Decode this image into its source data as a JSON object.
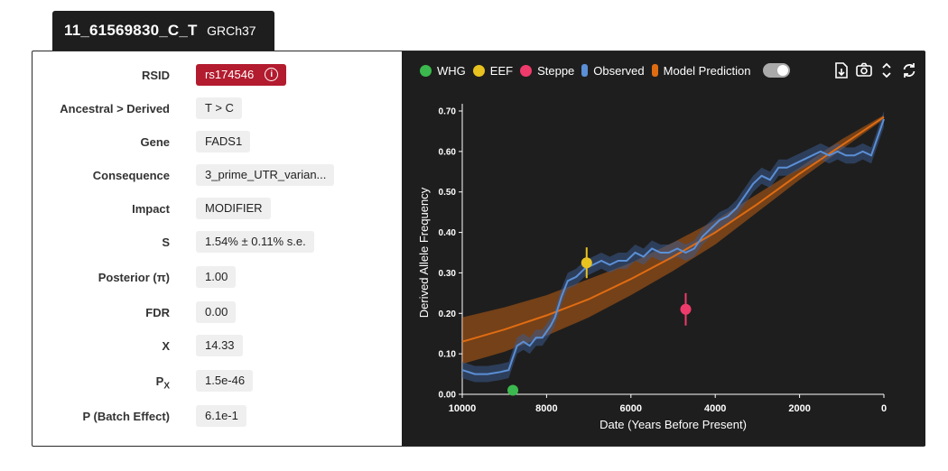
{
  "header": {
    "variant": "11_61569830_C_T",
    "build": "GRCh37"
  },
  "fields": [
    {
      "key": "rsid",
      "label": "RSID",
      "value": "rs174546"
    },
    {
      "key": "alleles",
      "label": "Ancestral > Derived",
      "value": "T > C"
    },
    {
      "key": "gene",
      "label": "Gene",
      "value": "FADS1"
    },
    {
      "key": "consequence",
      "label": "Consequence",
      "value": "3_prime_UTR_varian..."
    },
    {
      "key": "impact",
      "label": "Impact",
      "value": "MODIFIER"
    },
    {
      "key": "s",
      "label": "S",
      "value": "1.54% ± 0.11% s.e."
    },
    {
      "key": "posterior",
      "label": "Posterior (π)",
      "value": "1.00"
    },
    {
      "key": "fdr",
      "label": "FDR",
      "value": "0.00"
    },
    {
      "key": "x",
      "label": "X",
      "value": "14.33"
    },
    {
      "key": "px",
      "label": "P",
      "label_sub": "X",
      "value": "1.5e-46"
    },
    {
      "key": "batch",
      "label": "P (Batch Effect)",
      "value": "6.1e-1"
    }
  ],
  "legend": [
    {
      "name": "WHG",
      "color": "#3cb94e",
      "shape": "dot"
    },
    {
      "name": "EEF",
      "color": "#e8c21f",
      "shape": "dot"
    },
    {
      "name": "Steppe",
      "color": "#ef3b6b",
      "shape": "dot"
    },
    {
      "name": "Observed",
      "color": "#5b8fd6",
      "shape": "bar"
    },
    {
      "name": "Model Prediction",
      "color": "#e06c12",
      "shape": "bar"
    }
  ],
  "toolbar": {
    "icons": [
      "download-file-icon",
      "camera-icon",
      "expand-vertical-icon",
      "reset-icon"
    ]
  },
  "chart_data": {
    "type": "line",
    "xlabel": "Date (Years Before Present)",
    "ylabel": "Derived Allele Frequency",
    "xlim": [
      10000,
      0
    ],
    "ylim": [
      0,
      0.7
    ],
    "x_ticks": [
      10000,
      8000,
      6000,
      4000,
      2000,
      0
    ],
    "y_ticks": [
      0,
      0.1,
      0.2,
      0.3,
      0.4,
      0.5,
      0.6,
      0.7
    ],
    "grid": false,
    "series": [
      {
        "name": "Observed",
        "color": "#5b8fd6",
        "x": [
          10000,
          9700,
          9400,
          9100,
          8900,
          8800,
          8700,
          8550,
          8400,
          8250,
          8100,
          7900,
          7800,
          7650,
          7500,
          7300,
          7100,
          6900,
          6700,
          6500,
          6300,
          6100,
          5900,
          5700,
          5500,
          5300,
          5100,
          4900,
          4700,
          4500,
          4300,
          4100,
          3900,
          3700,
          3500,
          3300,
          3100,
          2900,
          2700,
          2500,
          2300,
          2100,
          1900,
          1700,
          1500,
          1300,
          1100,
          900,
          700,
          500,
          300,
          0
        ],
        "y": [
          0.06,
          0.05,
          0.05,
          0.055,
          0.06,
          0.09,
          0.12,
          0.13,
          0.12,
          0.14,
          0.14,
          0.17,
          0.19,
          0.24,
          0.28,
          0.29,
          0.31,
          0.32,
          0.33,
          0.32,
          0.33,
          0.33,
          0.35,
          0.34,
          0.36,
          0.35,
          0.35,
          0.36,
          0.35,
          0.36,
          0.39,
          0.41,
          0.43,
          0.44,
          0.46,
          0.49,
          0.52,
          0.54,
          0.53,
          0.56,
          0.56,
          0.57,
          0.58,
          0.59,
          0.6,
          0.59,
          0.6,
          0.59,
          0.59,
          0.6,
          0.59,
          0.68
        ],
        "band_width": 0.02
      },
      {
        "name": "Model Prediction",
        "color": "#e06c12",
        "x": [
          10000,
          9000,
          8000,
          7000,
          6000,
          5000,
          4000,
          3000,
          2000,
          1000,
          0
        ],
        "y": [
          0.13,
          0.16,
          0.195,
          0.235,
          0.285,
          0.34,
          0.4,
          0.47,
          0.545,
          0.615,
          0.685
        ],
        "band_lower": [
          0.075,
          0.105,
          0.145,
          0.19,
          0.245,
          0.305,
          0.37,
          0.45,
          0.53,
          0.605,
          0.68
        ],
        "band_upper": [
          0.19,
          0.215,
          0.245,
          0.285,
          0.325,
          0.375,
          0.43,
          0.495,
          0.56,
          0.63,
          0.69
        ]
      }
    ],
    "points": [
      {
        "name": "WHG",
        "color": "#3cb94e",
        "x": 8800,
        "y": 0.01,
        "err": 0.01
      },
      {
        "name": "EEF",
        "color": "#e8c21f",
        "x": 7050,
        "y": 0.325,
        "err": 0.038
      },
      {
        "name": "Steppe",
        "color": "#ef3b6b",
        "x": 4700,
        "y": 0.21,
        "err": 0.04
      }
    ]
  }
}
